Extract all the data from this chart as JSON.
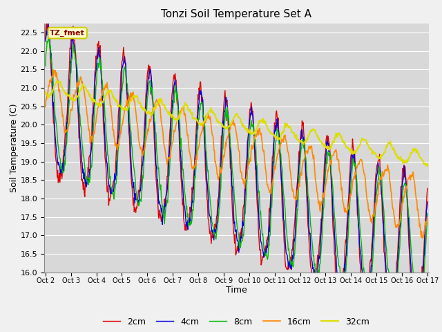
{
  "title": "Tonzi Soil Temperature Set A",
  "xlabel": "Time",
  "ylabel": "Soil Temperature (C)",
  "annotation": "TZ_fmet",
  "ylim": [
    16.0,
    22.75
  ],
  "yticks": [
    16.0,
    16.5,
    17.0,
    17.5,
    18.0,
    18.5,
    19.0,
    19.5,
    20.0,
    20.5,
    21.0,
    21.5,
    22.0,
    22.5
  ],
  "colors": {
    "2cm": "#dd0000",
    "4cm": "#0000dd",
    "8cm": "#00bb00",
    "16cm": "#ff8800",
    "32cm": "#dddd00"
  },
  "background_color": "#f0f0f0",
  "plot_bg_color": "#d8d8d8",
  "grid_color": "#ffffff",
  "xtick_labels": [
    "Oct 2",
    "Oct 3",
    "Oct 4",
    "Oct 5",
    "Oct 6",
    "Oct 7",
    "Oct 8",
    "Oct 9",
    "Oct 10",
    "Oct 11",
    "Oct 12",
    "Oct 13",
    "Oct 14",
    "Oct 15",
    "Oct 16",
    "Oct 17"
  ],
  "n_points": 720
}
